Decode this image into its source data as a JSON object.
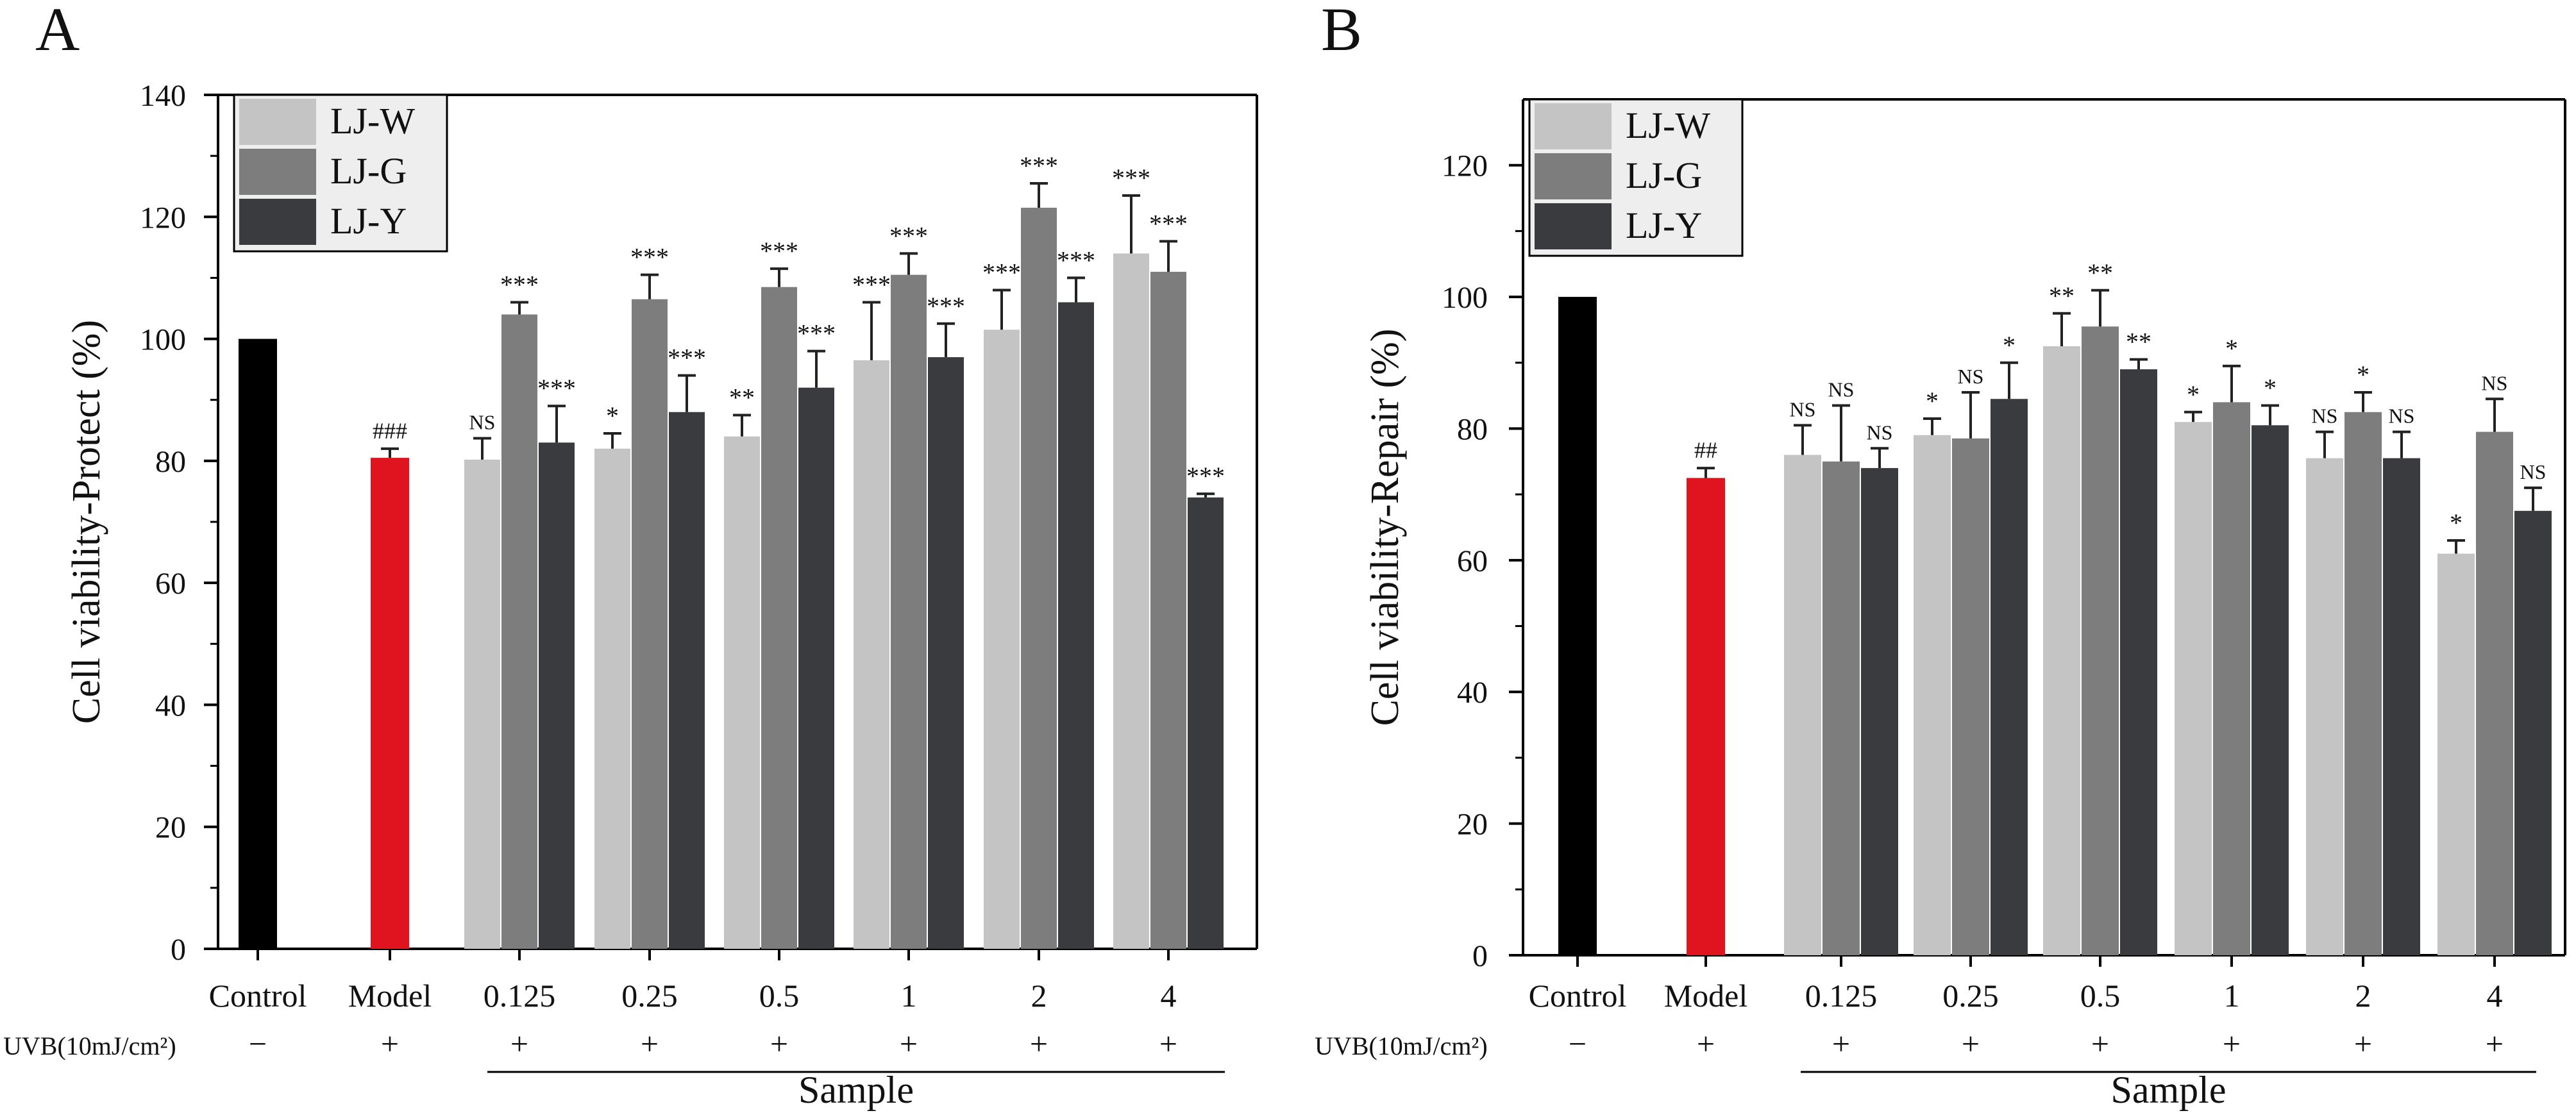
{
  "colors": {
    "control": "#000000",
    "model": "#e0141e",
    "LJ-W": "#c4c4c4",
    "LJ-G": "#7d7d7d",
    "LJ-Y": "#393b3e",
    "legend_bg": "#eeeeee",
    "error_bar": "#222222"
  },
  "chart_data": [
    {
      "type": "bar",
      "panel_label": "A",
      "ylabel": "Cell viability-Protect (%)",
      "xlabel": "Sample",
      "ylim": [
        0,
        140
      ],
      "yticks": [
        0,
        20,
        40,
        60,
        80,
        100,
        120,
        140
      ],
      "grid": false,
      "legend": {
        "location": "top-left",
        "entries": [
          "LJ-W",
          "LJ-G",
          "LJ-Y"
        ]
      },
      "uvb_label": "UVB(10mJ/cm²)",
      "controls": [
        {
          "name": "Control",
          "uvb": "−",
          "value": 100,
          "error": 0,
          "sig": "",
          "color_key": "control"
        },
        {
          "name": "Model",
          "uvb": "+",
          "value": 80.5,
          "error": 1.5,
          "sig": "###",
          "color_key": "model"
        }
      ],
      "categories": [
        "0.125",
        "0.25",
        "0.5",
        "1",
        "2",
        "4"
      ],
      "category_uvb": [
        "+",
        "+",
        "+",
        "+",
        "+",
        "+"
      ],
      "series": [
        {
          "name": "LJ-W",
          "values": [
            80.2,
            82.0,
            84.0,
            96.5,
            101.5,
            114.0
          ],
          "errors": [
            3.5,
            2.5,
            3.5,
            9.5,
            6.5,
            9.5
          ],
          "sig": [
            "NS",
            "*",
            "**",
            "***",
            "***",
            "***"
          ]
        },
        {
          "name": "LJ-G",
          "values": [
            104.0,
            106.5,
            108.5,
            110.5,
            121.5,
            111.0
          ],
          "errors": [
            2.0,
            4.0,
            3.0,
            3.5,
            4.0,
            5.0
          ],
          "sig": [
            "***",
            "***",
            "***",
            "***",
            "***",
            "***"
          ]
        },
        {
          "name": "LJ-Y",
          "values": [
            83.0,
            88.0,
            92.0,
            97.0,
            106.0,
            74.0
          ],
          "errors": [
            6.0,
            6.0,
            6.0,
            5.5,
            4.0,
            0.6
          ],
          "sig": [
            "***",
            "***",
            "***",
            "***",
            "***",
            "***"
          ]
        }
      ]
    },
    {
      "type": "bar",
      "panel_label": "B",
      "ylabel": "Cell viability-Repair (%)",
      "xlabel": "Sample",
      "ylim": [
        0,
        130
      ],
      "yticks": [
        0,
        20,
        40,
        60,
        80,
        100,
        120
      ],
      "grid": false,
      "legend": {
        "location": "top-left",
        "entries": [
          "LJ-W",
          "LJ-G",
          "LJ-Y"
        ]
      },
      "uvb_label": "UVB(10mJ/cm²)",
      "controls": [
        {
          "name": "Control",
          "uvb": "−",
          "value": 100,
          "error": 0,
          "sig": "",
          "color_key": "control"
        },
        {
          "name": "Model",
          "uvb": "+",
          "value": 72.5,
          "error": 1.5,
          "sig": "##",
          "color_key": "model"
        }
      ],
      "categories": [
        "0.125",
        "0.25",
        "0.5",
        "1",
        "2",
        "4"
      ],
      "category_uvb": [
        "+",
        "+",
        "+",
        "+",
        "+",
        "+"
      ],
      "series": [
        {
          "name": "LJ-W",
          "values": [
            76.0,
            79.0,
            92.5,
            81.0,
            75.5,
            61.0
          ],
          "errors": [
            4.5,
            2.5,
            5.0,
            1.5,
            4.0,
            2.0
          ],
          "sig": [
            "NS",
            "*",
            "**",
            "*",
            "NS",
            "*"
          ]
        },
        {
          "name": "LJ-G",
          "values": [
            75.0,
            78.5,
            95.5,
            84.0,
            82.5,
            79.5
          ],
          "errors": [
            8.5,
            7.0,
            5.5,
            5.5,
            3.0,
            5.0
          ],
          "sig": [
            "NS",
            "NS",
            "**",
            "*",
            "*",
            "NS"
          ]
        },
        {
          "name": "LJ-Y",
          "values": [
            74.0,
            84.5,
            89.0,
            80.5,
            75.5,
            67.5
          ],
          "errors": [
            3.0,
            5.5,
            1.5,
            3.0,
            4.0,
            3.5
          ],
          "sig": [
            "NS",
            "*",
            "**",
            "*",
            "NS",
            "NS"
          ]
        }
      ]
    }
  ]
}
